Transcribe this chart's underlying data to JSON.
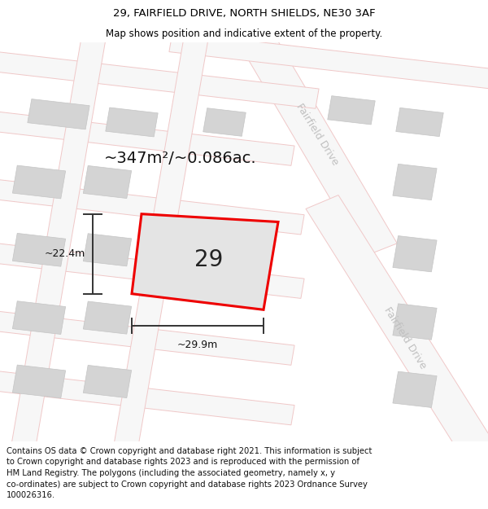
{
  "title_line1": "29, FAIRFIELD DRIVE, NORTH SHIELDS, NE30 3AF",
  "title_line2": "Map shows position and indicative extent of the property.",
  "area_text": "~347m²/~0.086ac.",
  "property_number": "29",
  "dim_width": "~29.9m",
  "dim_height": "~22.4m",
  "street_label_top": "Fairfield Drive",
  "street_label_bottom": "Fairfield Drive",
  "footer_text": "Contains OS data © Crown copyright and database right 2021. This information is subject to Crown copyright and database rights 2023 and is reproduced with the permission of HM Land Registry. The polygons (including the associated geometry, namely x, y co-ordinates) are subject to Crown copyright and database rights 2023 Ordnance Survey 100026316.",
  "bg_color": "#efefef",
  "map_bg": "#efefef",
  "road_fill": "#f7f7f7",
  "road_outline_color": "#f0c8c8",
  "building_color": "#d4d4d4",
  "building_outline": "#cccccc",
  "property_fill": "#e4e4e4",
  "property_outline": "#ee0000",
  "dim_line_color": "#333333",
  "street_label_color": "#c0c0c0",
  "title_fontsize": 9.5,
  "subtitle_fontsize": 8.5,
  "area_fontsize": 14,
  "number_fontsize": 20,
  "dim_fontsize": 9,
  "street_fontsize": 9,
  "footer_fontsize": 7.2
}
